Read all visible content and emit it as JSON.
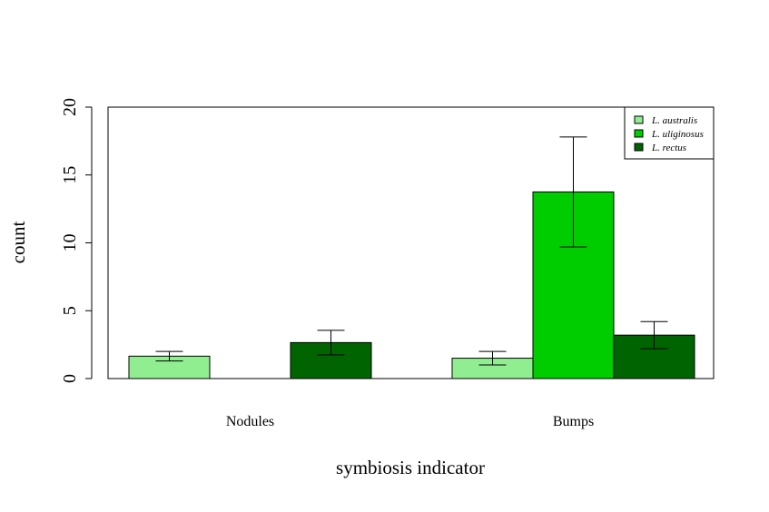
{
  "chart_data": {
    "type": "bar",
    "categories": [
      "Nodules",
      "Bumps"
    ],
    "series": [
      {
        "name": "L. australis",
        "color": "#90ee90",
        "values": [
          1.65,
          1.5
        ],
        "errors": [
          0.35,
          0.5
        ]
      },
      {
        "name": "L. uliginosus",
        "color": "#00cd00",
        "values": [
          0,
          13.75
        ],
        "errors": [
          0,
          4.05
        ]
      },
      {
        "name": "L. rectus",
        "color": "#006400",
        "values": [
          2.65,
          3.2
        ],
        "errors": [
          0.9,
          1.0
        ]
      }
    ],
    "xlabel": "symbiosis indicator",
    "ylabel": "count",
    "ylim": [
      0,
      20
    ],
    "yticks": [
      0,
      5,
      10,
      15,
      20
    ],
    "legend_position": "top-right",
    "grid": false
  }
}
